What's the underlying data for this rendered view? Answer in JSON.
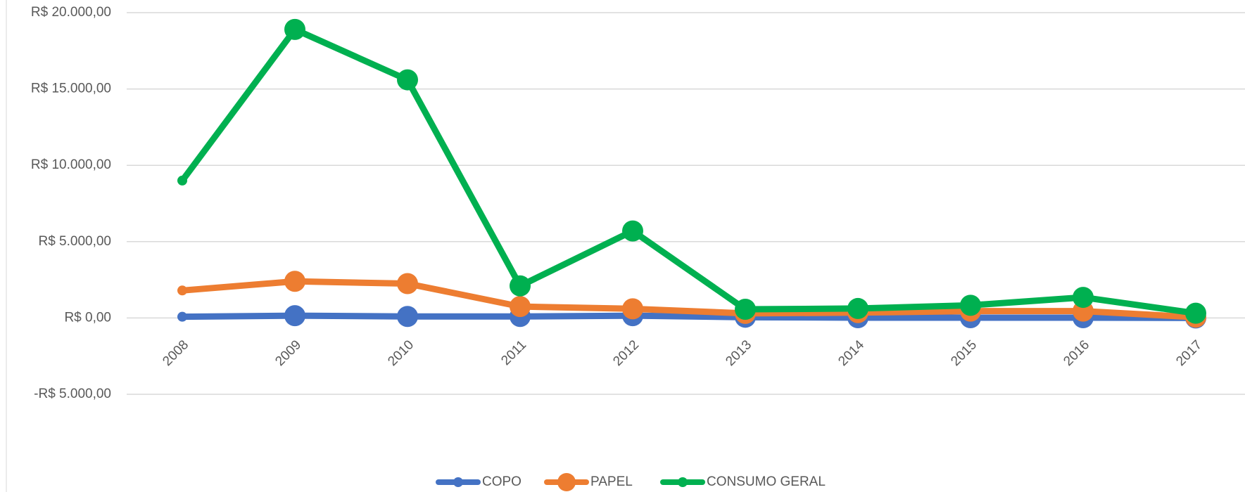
{
  "chart_data": {
    "type": "line",
    "categories": [
      "2008",
      "2009",
      "2010",
      "2011",
      "2012",
      "2013",
      "2014",
      "2015",
      "2016",
      "2017"
    ],
    "series": [
      {
        "name": "COPO",
        "color": "#4472c4",
        "values": [
          80,
          150,
          100,
          100,
          150,
          50,
          20,
          20,
          20,
          0
        ]
      },
      {
        "name": "PAPEL",
        "color": "#ed7d31",
        "values": [
          1800,
          2400,
          2250,
          750,
          600,
          300,
          350,
          450,
          450,
          50
        ]
      },
      {
        "name": "CONSUMO GERAL",
        "color": "#00b050",
        "values": [
          9000,
          18900,
          15600,
          2100,
          5700,
          570,
          620,
          830,
          1350,
          310
        ]
      }
    ],
    "ylim": [
      -5000,
      20000
    ],
    "yticks": [
      {
        "value": -5000,
        "label": "-R$ 5.000,00"
      },
      {
        "value": 0,
        "label": "R$ 0,00"
      },
      {
        "value": 5000,
        "label": "R$ 5.000,00"
      },
      {
        "value": 10000,
        "label": "R$ 10.000,00"
      },
      {
        "value": 15000,
        "label": "R$ 15.000,00"
      },
      {
        "value": 20000,
        "label": "R$ 20.000,00"
      }
    ],
    "grid": true,
    "legend": "bottom"
  }
}
